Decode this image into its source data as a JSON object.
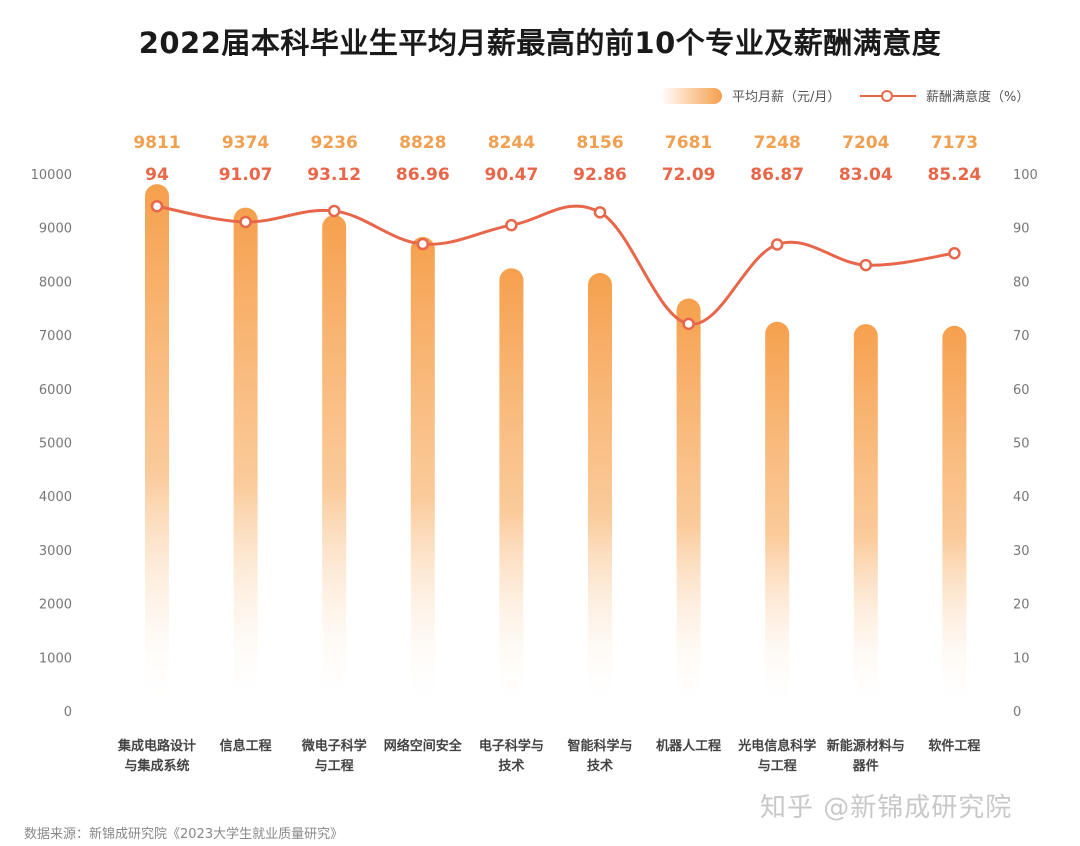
{
  "title": "2022届本科毕业生平均月薪最高的前10个专业及薪酬满意度",
  "legend": {
    "bar_label": "平均月薪（元/月）",
    "line_label": "薪酬满意度（%）"
  },
  "footer": {
    "source": "数据来源：新锦成研究院《2023大学生就业质量研究》",
    "watermark": "知乎 @新锦成研究院"
  },
  "colors": {
    "bar": "#f6a04d",
    "bar_value_label": "#f0a050",
    "line": "#e8674a",
    "line_value_label": "#e8674a",
    "axis_text": "#777777"
  },
  "chart_data": {
    "type": "bar",
    "title": "2022届本科毕业生平均月薪最高的前10个专业及薪酬满意度",
    "categories": [
      [
        "集成电路设计",
        "与集成系统"
      ],
      [
        "信息工程"
      ],
      [
        "微电子科学",
        "与工程"
      ],
      [
        "网络空间安全"
      ],
      [
        "电子科学与",
        "技术"
      ],
      [
        "智能科学与",
        "技术"
      ],
      [
        "机器人工程"
      ],
      [
        "光电信息科学",
        "与工程"
      ],
      [
        "新能源材料与",
        "器件"
      ],
      [
        "软件工程"
      ]
    ],
    "series": [
      {
        "name": "平均月薪（元/月）",
        "type": "bar",
        "axis": "left",
        "values": [
          9811,
          9374,
          9236,
          8828,
          8244,
          8156,
          7681,
          7248,
          7204,
          7173
        ],
        "labels": [
          "9811",
          "9374",
          "9236",
          "8828",
          "8244",
          "8156",
          "7681",
          "7248",
          "7204",
          "7173"
        ]
      },
      {
        "name": "薪酬满意度（%）",
        "type": "line",
        "axis": "right",
        "values": [
          94,
          91.07,
          93.12,
          86.96,
          90.47,
          92.86,
          72.09,
          86.87,
          83.04,
          85.24
        ],
        "labels": [
          "94",
          "91.07",
          "93.12",
          "86.96",
          "90.47",
          "92.86",
          "72.09",
          "86.87",
          "83.04",
          "85.24"
        ]
      }
    ],
    "y_left": {
      "ylim": [
        0,
        10000
      ],
      "ticks": [
        "0",
        "1000",
        "2000",
        "3000",
        "4000",
        "5000",
        "6000",
        "7000",
        "8000",
        "9000",
        "10000"
      ]
    },
    "y_right": {
      "ylim": [
        0,
        100
      ],
      "ticks": [
        "0",
        "10",
        "20",
        "30",
        "40",
        "50",
        "60",
        "70",
        "80",
        "90",
        "100"
      ]
    },
    "grid": false,
    "legend_position": "top-right"
  }
}
